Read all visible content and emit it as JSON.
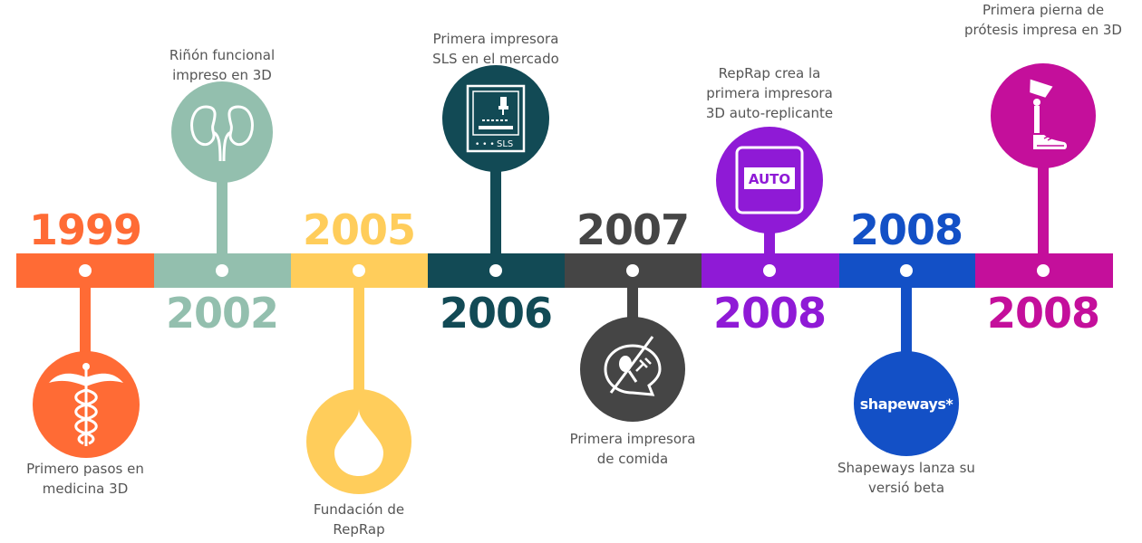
{
  "timeline": {
    "events": [
      {
        "year": "1999",
        "caption_line1": "Primero pasos en",
        "caption_line2": "medicina 3D",
        "color": "#ff6b35",
        "icon": "caduceus-icon"
      },
      {
        "year": "2002",
        "caption_line1": "Riñón funcional",
        "caption_line2": "impreso en 3D",
        "color": "#93bfae",
        "icon": "kidney-icon"
      },
      {
        "year": "2005",
        "caption_line1": "Fundación de",
        "caption_line2": "RepRap",
        "color": "#ffcd5b",
        "icon": "drop-icon"
      },
      {
        "year": "2006",
        "caption_line1": "Primera impresora",
        "caption_line2": "SLS en el mercado",
        "color": "#124a55",
        "icon": "printer-icon",
        "icon_text": "SLS"
      },
      {
        "year": "2007",
        "caption_line1": "Primera impresora",
        "caption_line2": "de comida",
        "color": "#454545",
        "icon": "food-print-icon"
      },
      {
        "year": "2008",
        "caption_line1": "RepRap crea la",
        "caption_line2": "primera impresora",
        "caption_line3": "3D auto-replicante",
        "color": "#8f1ad6",
        "icon": "auto-icon",
        "icon_text": "AUTO"
      },
      {
        "year": "2008",
        "caption_line1": "Shapeways lanza su",
        "caption_line2": "versió beta",
        "color": "#1350c6",
        "icon": "shapeways-logo",
        "icon_text": "shapeways*"
      },
      {
        "year": "2008",
        "caption_line1": "Primera pierna de",
        "caption_line2": "prótesis impresa en 3D",
        "color": "#c40f9b",
        "icon": "prosthetic-leg-icon"
      }
    ]
  }
}
